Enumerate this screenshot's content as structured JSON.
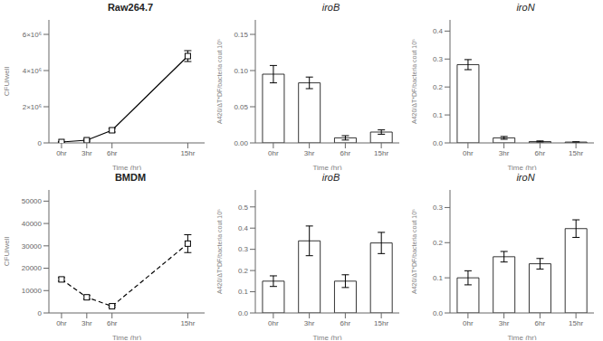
{
  "chart_data": [
    {
      "type": "line",
      "title": "Raw264.7",
      "x": [
        0,
        3,
        6,
        15
      ],
      "values": [
        50000,
        150000,
        700000,
        4800000
      ],
      "yerr": [
        20000,
        50000,
        100000,
        300000
      ],
      "xlabel": "Time (hr)",
      "ylabel": "CFU/well",
      "xlim": [
        -1.5,
        17
      ],
      "xticks": [
        {
          "value": 0,
          "label": "0hr"
        },
        {
          "value": 3,
          "label": "3hr"
        },
        {
          "value": 6,
          "label": "6hr"
        },
        {
          "value": 15,
          "label": "15hr"
        }
      ],
      "ylim": [
        0,
        6800000
      ],
      "yticks": [
        0,
        {
          "value": 2000000,
          "label": "2×10⁶"
        },
        {
          "value": 4000000,
          "label": "4×10⁶"
        },
        {
          "value": 6000000,
          "label": "6×10⁶"
        }
      ],
      "color": "#000000",
      "marker": "square",
      "line_style": "solid"
    },
    {
      "type": "bar",
      "title": "iroB",
      "categories": [
        "0hr",
        "3hr",
        "6hr",
        "15hr"
      ],
      "values": [
        0.095,
        0.083,
        0.007,
        0.015
      ],
      "yerr": [
        0.012,
        0.008,
        0.003,
        0.003
      ],
      "xlabel": "Time (hr)",
      "ylabel": "A420/ΔT*DF/bacteria cout 10⁵",
      "ylim": [
        0,
        0.17
      ],
      "yticks": [
        {
          "value": 0,
          "label": "0.00"
        },
        0.05,
        {
          "value": 0.1,
          "label": "0.10"
        },
        0.15
      ],
      "color": "#ffffff"
    },
    {
      "type": "bar",
      "title": "iroN",
      "categories": [
        "0hr",
        "3hr",
        "6hr",
        "15hr"
      ],
      "values": [
        0.28,
        0.018,
        0.005,
        0.003
      ],
      "yerr": [
        0.018,
        0.005,
        0.002,
        0.001
      ],
      "xlabel": "Time (hr)",
      "ylabel": "A420/ΔT*DF/bacteria cout 10⁵",
      "ylim": [
        0,
        0.44
      ],
      "yticks": [
        {
          "value": 0,
          "label": "0.0"
        },
        0.1,
        0.2,
        0.3,
        0.4
      ],
      "color": "#ffffff"
    },
    {
      "type": "line",
      "title": "BMDM",
      "x": [
        0,
        3,
        6,
        15
      ],
      "values": [
        15000,
        7000,
        3000,
        31000
      ],
      "yerr": [
        800,
        800,
        400,
        4000
      ],
      "xlabel": "Time (hr)",
      "ylabel": "CFU/well",
      "xlim": [
        -1.5,
        17
      ],
      "xticks": [
        {
          "value": 0,
          "label": "0hr"
        },
        {
          "value": 3,
          "label": "3hr"
        },
        {
          "value": 6,
          "label": "6hr"
        },
        {
          "value": 15,
          "label": "15hr"
        }
      ],
      "ylim": [
        0,
        55000
      ],
      "yticks": [
        0,
        10000,
        20000,
        30000,
        40000,
        50000
      ],
      "color": "#000000",
      "marker": "square",
      "line_style": "dashed"
    },
    {
      "type": "bar",
      "title": "iroB",
      "categories": [
        "0hr",
        "3hr",
        "6hr",
        "15hr"
      ],
      "values": [
        0.15,
        0.34,
        0.15,
        0.33
      ],
      "yerr": [
        0.025,
        0.07,
        0.03,
        0.05
      ],
      "xlabel": "Time (hr)",
      "ylabel": "A420/ΔT*DF/bacteria cout 10⁵",
      "ylim": [
        0,
        0.58
      ],
      "yticks": [
        {
          "value": 0,
          "label": "0.0"
        },
        0.1,
        0.2,
        0.3,
        0.4,
        0.5
      ],
      "color": "#ffffff"
    },
    {
      "type": "bar",
      "title": "iroN",
      "categories": [
        "0hr",
        "3hr",
        "6hr",
        "15hr"
      ],
      "values": [
        0.1,
        0.16,
        0.14,
        0.24
      ],
      "yerr": [
        0.02,
        0.015,
        0.015,
        0.025
      ],
      "xlabel": "Time (hr)",
      "ylabel": "A420/ΔT*DF/bacteria cout 10⁵",
      "ylim": [
        0,
        0.35
      ],
      "yticks": [
        {
          "value": 0,
          "label": "0.0"
        },
        0.1,
        0.2,
        0.3
      ],
      "color": "#ffffff"
    }
  ]
}
